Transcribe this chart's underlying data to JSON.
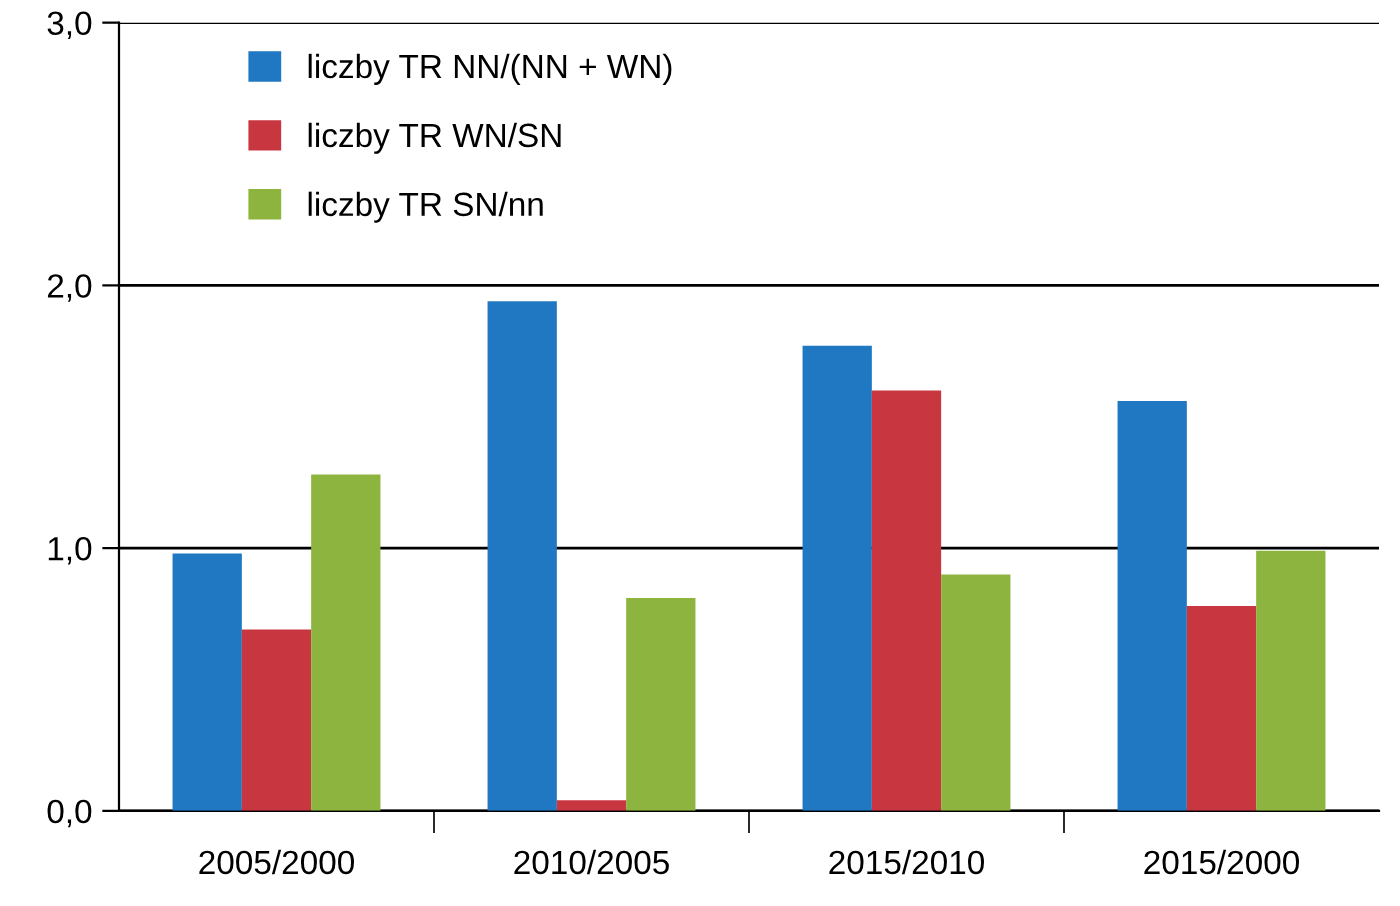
{
  "chart_data": {
    "type": "bar",
    "categories": [
      "2005/2000",
      "2010/2005",
      "2015/2010",
      "2015/2000"
    ],
    "series": [
      {
        "name": "liczby TR NN/(NN + WN)",
        "color": "#1f78c1",
        "values": [
          0.98,
          1.94,
          1.77,
          1.56
        ]
      },
      {
        "name": "liczby TR WN/SN",
        "color": "#c8373f",
        "values": [
          0.69,
          0.04,
          1.6,
          0.78
        ]
      },
      {
        "name": "liczby TR SN/nn",
        "color": "#8db43f",
        "values": [
          1.28,
          0.81,
          0.9,
          0.99
        ]
      }
    ],
    "ylim": [
      0,
      3
    ],
    "yticks": [
      {
        "value": 0,
        "label": "0,0"
      },
      {
        "value": 1,
        "label": "1,0"
      },
      {
        "value": 2,
        "label": "2,0"
      },
      {
        "value": 3,
        "label": "3,0"
      }
    ],
    "grid": "y",
    "legend": "top left"
  }
}
